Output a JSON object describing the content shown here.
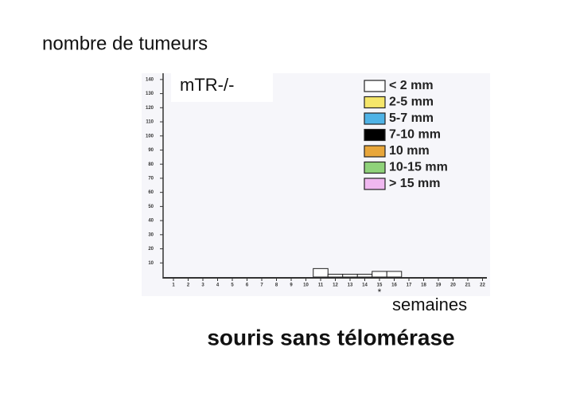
{
  "chart_data": {
    "type": "bar",
    "y_label": "nombre de tumeurs",
    "inset_label": "mTR-/-",
    "x_label": "semaines",
    "title": "souris sans télomérase",
    "star_annotation": "*",
    "stacked": true,
    "categories": [
      "1",
      "2",
      "3",
      "4",
      "5",
      "6",
      "7",
      "8",
      "9",
      "10",
      "11",
      "12",
      "13",
      "14",
      "15",
      "16",
      "17",
      "18",
      "19",
      "20",
      "21",
      "22"
    ],
    "series": [
      {
        "name": "< 2 mm",
        "color": "#ffffff",
        "values": [
          0,
          0,
          0,
          0,
          0,
          0,
          0,
          0,
          0,
          0,
          6,
          2,
          2,
          2,
          4,
          4,
          0,
          0,
          0,
          0,
          0,
          0
        ]
      },
      {
        "name": "2-5 mm",
        "color": "#f5e66a",
        "values": [
          0,
          0,
          0,
          0,
          0,
          0,
          0,
          0,
          0,
          0,
          0,
          0,
          0,
          0,
          0,
          0,
          0,
          0,
          0,
          0,
          0,
          0
        ]
      },
      {
        "name": "5-7 mm",
        "color": "#4fb3e6",
        "values": [
          0,
          0,
          0,
          0,
          0,
          0,
          0,
          0,
          0,
          0,
          0,
          0,
          0,
          0,
          0,
          0,
          0,
          0,
          0,
          0,
          0,
          0
        ]
      },
      {
        "name": "7-10 mm",
        "color": "#000000",
        "values": [
          0,
          0,
          0,
          0,
          0,
          0,
          0,
          0,
          0,
          0,
          0,
          0,
          0,
          0,
          0,
          0,
          0,
          0,
          0,
          0,
          0,
          0
        ]
      },
      {
        "name": "10 mm",
        "color": "#e8a63a",
        "values": [
          0,
          0,
          0,
          0,
          0,
          0,
          0,
          0,
          0,
          0,
          0,
          0,
          0,
          0,
          0,
          0,
          0,
          0,
          0,
          0,
          0,
          0
        ]
      },
      {
        "name": "10-15 mm",
        "color": "#8fd27a",
        "values": [
          0,
          0,
          0,
          0,
          0,
          0,
          0,
          0,
          0,
          0,
          0,
          0,
          0,
          0,
          0,
          0,
          0,
          0,
          0,
          0,
          0,
          0
        ]
      },
      {
        "name": "> 15 mm",
        "color": "#f0b8f0",
        "values": [
          0,
          0,
          0,
          0,
          0,
          0,
          0,
          0,
          0,
          0,
          0,
          0,
          0,
          0,
          0,
          0,
          0,
          0,
          0,
          0,
          0,
          0
        ]
      }
    ],
    "ylim": [
      0,
      145
    ],
    "yticks": [
      10,
      20,
      30,
      40,
      50,
      60,
      70,
      80,
      90,
      100,
      110,
      120,
      130,
      140
    ]
  }
}
